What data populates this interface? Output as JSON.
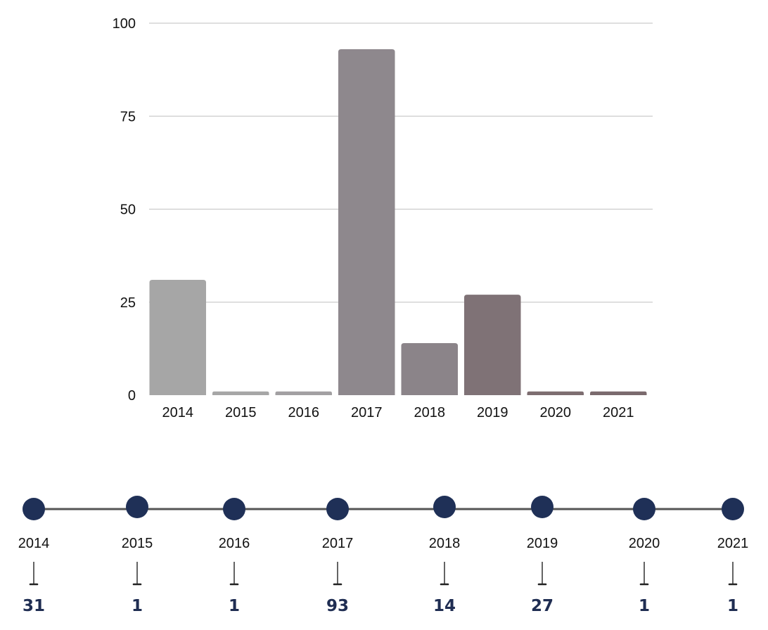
{
  "chart_data": [
    {
      "type": "bar",
      "categories": [
        "2014",
        "2015",
        "2016",
        "2017",
        "2018",
        "2019",
        "2020",
        "2021"
      ],
      "values": [
        31,
        1,
        1,
        93,
        14,
        27,
        1,
        1
      ],
      "colors": [
        "#a6a6a6",
        "#a6a6a6",
        "#a2a0a2",
        "#8e888d",
        "#8b8489",
        "#7f7276",
        "#7d6d70",
        "#7a6a6d"
      ],
      "yticks": [
        "0",
        "25",
        "50",
        "75",
        "100"
      ],
      "ylim": [
        0,
        100
      ],
      "grid": true,
      "title": "",
      "xlabel": "",
      "ylabel": ""
    },
    {
      "type": "timeline",
      "categories": [
        "2014",
        "2015",
        "2016",
        "2017",
        "2018",
        "2019",
        "2020",
        "2021"
      ],
      "values": [
        "31",
        "1",
        "1",
        "93",
        "14",
        "27",
        "1",
        "1"
      ],
      "marker_color": "#1f3057",
      "value_color": "#1f2d52",
      "line_color": "#555555"
    }
  ]
}
